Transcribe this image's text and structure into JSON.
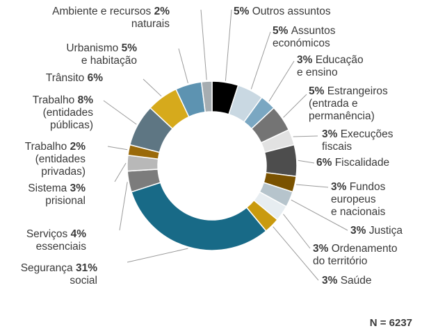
{
  "chart_data": {
    "type": "pie",
    "note": "N = 6237",
    "slices": [
      {
        "name": "Outros assuntos",
        "pct_label": "5%",
        "value": 5,
        "color": "#000000"
      },
      {
        "name": "Assuntos\neconómicos",
        "pct_label": "5%",
        "value": 5,
        "color": "#c9d8e2"
      },
      {
        "name": "Educação\ne ensino",
        "pct_label": "3%",
        "value": 3,
        "color": "#7aa7c2"
      },
      {
        "name": "Estrangeiros\n(entrada e\npermanência)",
        "pct_label": "5%",
        "value": 5,
        "color": "#747474"
      },
      {
        "name": "Execuções\nfiscais",
        "pct_label": "3%",
        "value": 3,
        "color": "#e2e2e2"
      },
      {
        "name": "Fiscalidade",
        "pct_label": "6%",
        "value": 6,
        "color": "#4d4d4d"
      },
      {
        "name": "Fundos\neuropeus\ne nacionais",
        "pct_label": "3%",
        "value": 3,
        "color": "#7a5200"
      },
      {
        "name": "Justiça",
        "pct_label": "3%",
        "value": 3,
        "color": "#b6c4cc"
      },
      {
        "name": "Ordenamento\ndo território",
        "pct_label": "3%",
        "value": 3,
        "color": "#e7edf1"
      },
      {
        "name": "Saúde",
        "pct_label": "3%",
        "value": 3,
        "color": "#c99a0e"
      },
      {
        "name": "Segurança\nsocial",
        "pct_label": "31%",
        "value": 31,
        "color": "#186a87"
      },
      {
        "name": "Serviços\nessenciais",
        "pct_label": "4%",
        "value": 4,
        "color": "#7c7c7c"
      },
      {
        "name": "Sistema\nprisional",
        "pct_label": "3%",
        "value": 3,
        "color": "#b8b8b8"
      },
      {
        "name": "Trabalho\n(entidades\nprivadas)",
        "pct_label": "2%",
        "value": 2,
        "color": "#9a6a0a"
      },
      {
        "name": "Trabalho\n(entidades\npúblicas)",
        "pct_label": "8%",
        "value": 8,
        "color": "#5e7683"
      },
      {
        "name": "Trânsito",
        "pct_label": "6%",
        "value": 6,
        "color": "#d6aa1c"
      },
      {
        "name": "Urbanismo\ne habitação",
        "pct_label": "5%",
        "value": 5,
        "color": "#5d93b1"
      },
      {
        "name": "Ambiente e recursos\nnaturais",
        "pct_label": "2%",
        "value": 2,
        "color": "#a6adb1"
      }
    ]
  }
}
